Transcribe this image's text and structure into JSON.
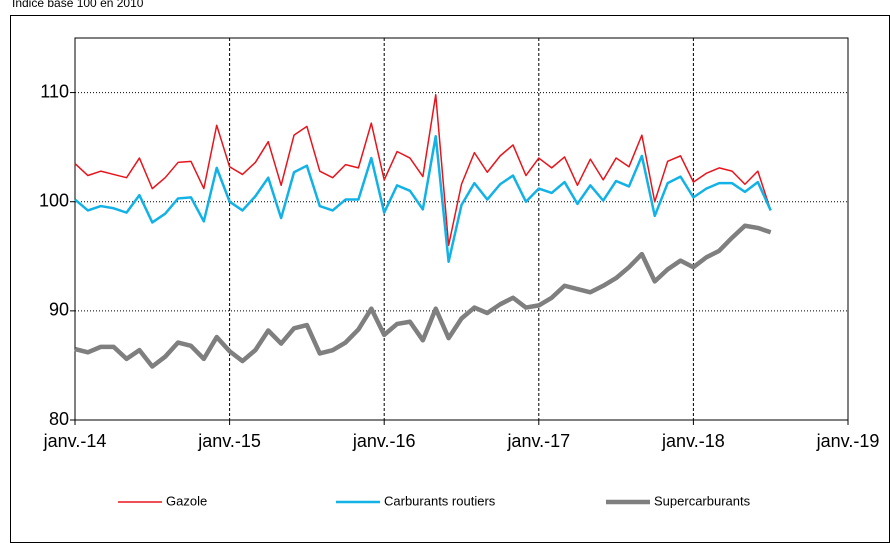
{
  "chart_data": {
    "type": "line",
    "title": "Indice base 100 en 2010",
    "x": [
      "2014-01",
      "2014-02",
      "2014-03",
      "2014-04",
      "2014-05",
      "2014-06",
      "2014-07",
      "2014-08",
      "2014-09",
      "2014-10",
      "2014-11",
      "2014-12",
      "2015-01",
      "2015-02",
      "2015-03",
      "2015-04",
      "2015-05",
      "2015-06",
      "2015-07",
      "2015-08",
      "2015-09",
      "2015-10",
      "2015-11",
      "2015-12",
      "2016-01",
      "2016-02",
      "2016-03",
      "2016-04",
      "2016-05",
      "2016-06",
      "2016-07",
      "2016-08",
      "2016-09",
      "2016-10",
      "2016-11",
      "2016-12",
      "2017-01",
      "2017-02",
      "2017-03",
      "2017-04",
      "2017-05",
      "2017-06",
      "2017-07",
      "2017-08",
      "2017-09",
      "2017-10",
      "2017-11",
      "2017-12",
      "2018-01",
      "2018-02",
      "2018-03",
      "2018-04",
      "2018-05",
      "2018-06",
      "2018-07"
    ],
    "series": [
      {
        "name": "Gazole",
        "color": "#e8141c",
        "width": 1.5,
        "values": [
          103.5,
          102.4,
          102.8,
          102.5,
          102.2,
          104.0,
          101.2,
          102.2,
          103.6,
          103.7,
          101.2,
          107.0,
          103.2,
          102.5,
          103.6,
          105.5,
          101.5,
          106.1,
          106.9,
          102.8,
          102.2,
          103.4,
          103.1,
          107.2,
          102.0,
          104.6,
          104.0,
          102.3,
          109.8,
          96.0,
          101.6,
          104.5,
          102.7,
          104.2,
          105.2,
          102.4,
          104.0,
          103.1,
          104.1,
          101.5,
          103.9,
          102.0,
          104.0,
          103.2,
          106.1,
          100.0,
          103.7,
          104.2,
          101.8,
          102.6,
          103.1,
          102.8,
          101.6,
          102.8,
          99.2
        ]
      },
      {
        "name": "Carburants routiers",
        "color": "#12b2e6",
        "width": 2.5,
        "values": [
          100.2,
          99.2,
          99.6,
          99.4,
          99.0,
          100.6,
          98.1,
          98.9,
          100.3,
          100.4,
          98.2,
          103.1,
          100.0,
          99.2,
          100.5,
          102.2,
          98.5,
          102.7,
          103.3,
          99.6,
          99.2,
          100.2,
          100.2,
          104.0,
          99.0,
          101.5,
          101.0,
          99.3,
          106.0,
          94.5,
          99.7,
          101.7,
          100.2,
          101.6,
          102.4,
          100.0,
          101.2,
          100.8,
          101.8,
          99.8,
          101.5,
          100.1,
          101.9,
          101.4,
          104.2,
          98.7,
          101.7,
          102.3,
          100.4,
          101.2,
          101.7,
          101.7,
          100.9,
          101.8,
          99.2
        ]
      },
      {
        "name": "Supercarburants",
        "color": "#7f7f7f",
        "width": 4.5,
        "values": [
          86.5,
          86.2,
          86.7,
          86.7,
          85.6,
          86.4,
          84.9,
          85.8,
          87.1,
          86.8,
          85.6,
          87.6,
          86.3,
          85.4,
          86.4,
          88.2,
          87.0,
          88.4,
          88.7,
          86.1,
          86.4,
          87.1,
          88.3,
          90.2,
          87.8,
          88.8,
          89.0,
          87.3,
          90.2,
          87.5,
          89.3,
          90.3,
          89.8,
          90.6,
          91.2,
          90.3,
          90.5,
          91.2,
          92.3,
          92.0,
          91.7,
          92.3,
          93.0,
          94.0,
          95.2,
          92.7,
          93.8,
          94.6,
          94.0,
          94.9,
          95.5,
          96.7,
          97.8,
          97.6,
          97.2
        ]
      }
    ],
    "xlim": [
      "2014-01",
      "2019-01"
    ],
    "xticks": [
      {
        "value": "2014-01",
        "label": "janv.-14"
      },
      {
        "value": "2015-01",
        "label": "janv.-15"
      },
      {
        "value": "2016-01",
        "label": "janv.-16"
      },
      {
        "value": "2017-01",
        "label": "janv.-17"
      },
      {
        "value": "2018-01",
        "label": "janv.-18"
      },
      {
        "value": "2019-01",
        "label": "janv.-19"
      }
    ],
    "ylim": [
      80,
      115
    ],
    "yticks": [
      80,
      90,
      100,
      110
    ],
    "grid": true,
    "legend": "bottom"
  }
}
